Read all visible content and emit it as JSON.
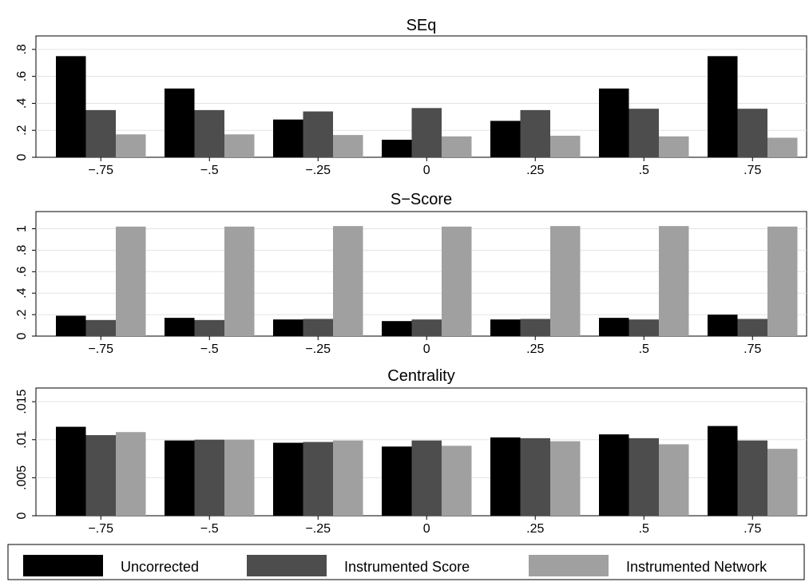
{
  "chart_data": [
    {
      "type": "bar",
      "title": "SEq",
      "categories": [
        "−.75",
        "−.5",
        "−.25",
        "0",
        ".25",
        ".5",
        ".75"
      ],
      "series": [
        {
          "name": "Uncorrected",
          "values": [
            0.75,
            0.51,
            0.28,
            0.13,
            0.27,
            0.51,
            0.75
          ]
        },
        {
          "name": "Instrumented Score",
          "values": [
            0.35,
            0.35,
            0.34,
            0.365,
            0.35,
            0.36,
            0.36
          ]
        },
        {
          "name": "Instrumented Network",
          "values": [
            0.17,
            0.17,
            0.165,
            0.155,
            0.16,
            0.155,
            0.145
          ]
        }
      ],
      "ylim": [
        0,
        0.9
      ],
      "yticks": [
        0,
        0.2,
        0.4,
        0.6,
        0.8
      ],
      "ytick_labels": [
        "0",
        ".2",
        ".4",
        ".6",
        ".8"
      ],
      "grid": true
    },
    {
      "type": "bar",
      "title": "S−Score",
      "categories": [
        "−.75",
        "−.5",
        "−.25",
        "0",
        ".25",
        ".5",
        ".75"
      ],
      "series": [
        {
          "name": "Uncorrected",
          "values": [
            0.19,
            0.17,
            0.155,
            0.14,
            0.155,
            0.17,
            0.2
          ]
        },
        {
          "name": "Instrumented Score",
          "values": [
            0.15,
            0.15,
            0.16,
            0.155,
            0.16,
            0.155,
            0.16
          ]
        },
        {
          "name": "Instrumented Network",
          "values": [
            1.02,
            1.02,
            1.025,
            1.02,
            1.025,
            1.025,
            1.02
          ]
        }
      ],
      "ylim": [
        0,
        1.16
      ],
      "yticks": [
        0,
        0.2,
        0.4,
        0.6,
        0.8,
        1
      ],
      "ytick_labels": [
        "0",
        ".2",
        ".4",
        ".6",
        ".8",
        "1"
      ],
      "grid": true
    },
    {
      "type": "bar",
      "title": "Centrality",
      "categories": [
        "−.75",
        "−.5",
        "−.25",
        "0",
        ".25",
        ".5",
        ".75"
      ],
      "series": [
        {
          "name": "Uncorrected",
          "values": [
            0.0117,
            0.0099,
            0.0096,
            0.0091,
            0.0103,
            0.0107,
            0.0118
          ]
        },
        {
          "name": "Instrumented Score",
          "values": [
            0.0106,
            0.01,
            0.0097,
            0.0099,
            0.0102,
            0.0102,
            0.0099
          ]
        },
        {
          "name": "Instrumented Network",
          "values": [
            0.011,
            0.01,
            0.0099,
            0.0092,
            0.0098,
            0.0094,
            0.0088
          ]
        }
      ],
      "ylim": [
        0,
        0.0168
      ],
      "yticks": [
        0,
        0.005,
        0.01,
        0.015
      ],
      "ytick_labels": [
        "0",
        ".005",
        ".01",
        ".015"
      ],
      "grid": true
    }
  ],
  "legend": {
    "placement": "bottom",
    "items": [
      {
        "label": "Uncorrected",
        "color": "#000000"
      },
      {
        "label": "Instrumented Score",
        "color": "#4d4d4d"
      },
      {
        "label": "Instrumented Network",
        "color": "#a0a0a0"
      }
    ]
  },
  "colors": [
    "#000000",
    "#4d4d4d",
    "#a0a0a0"
  ]
}
